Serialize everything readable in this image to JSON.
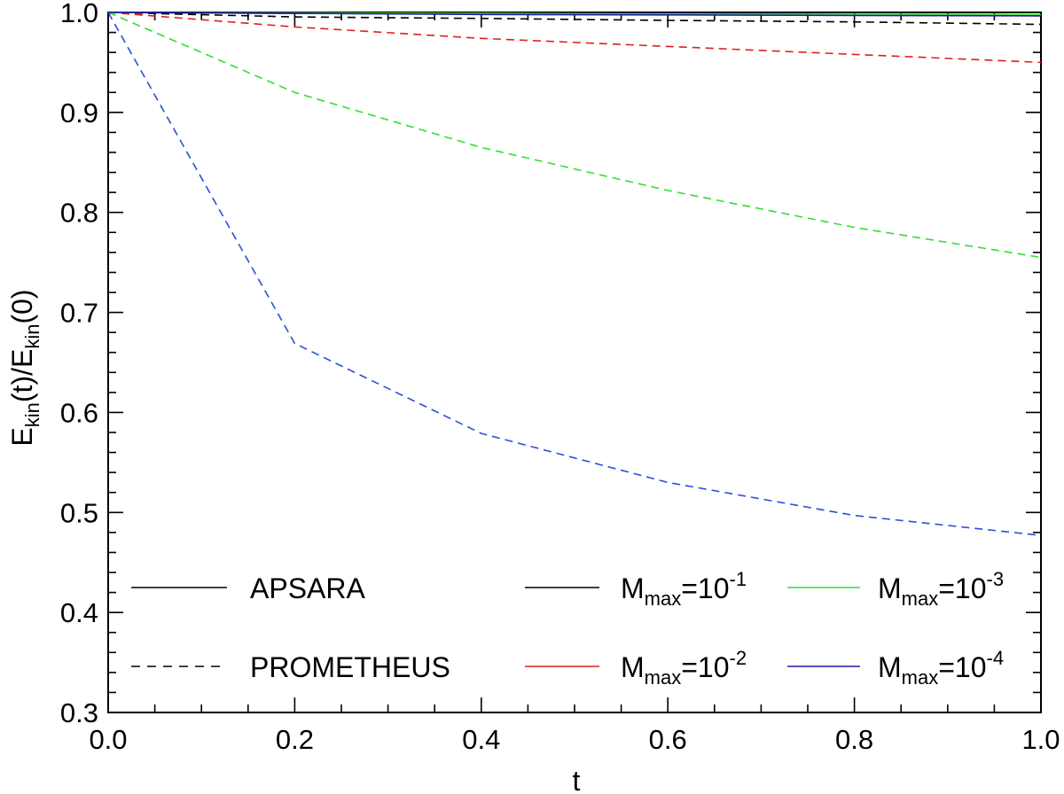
{
  "chart_data": {
    "type": "line",
    "xlabel": "t",
    "ylabel": {
      "base": "E",
      "sub1": "kin",
      "mid": "(t)/E",
      "sub2": "kin",
      "tail": "(0)"
    },
    "xlim": [
      0.0,
      1.0
    ],
    "ylim": [
      0.3,
      1.0
    ],
    "xticks": [
      "0.0",
      "0.2",
      "0.4",
      "0.6",
      "0.8",
      "1.0"
    ],
    "yticks": [
      "0.3",
      "0.4",
      "0.5",
      "0.6",
      "0.7",
      "0.8",
      "0.9",
      "1.0"
    ],
    "x": [
      0.0,
      0.2,
      0.4,
      0.6,
      0.8,
      1.0
    ],
    "series": [
      {
        "name": "APSARA M_max=10^-1",
        "code": "apsara",
        "color": "#000000",
        "dash": false,
        "values": [
          1.0,
          0.999,
          0.9985,
          0.998,
          0.9975,
          0.997
        ]
      },
      {
        "name": "APSARA M_max=10^-2",
        "code": "apsara",
        "color": "#e0201c",
        "dash": false,
        "values": [
          1.0,
          0.9995,
          0.999,
          0.9985,
          0.998,
          0.9975
        ]
      },
      {
        "name": "APSARA M_max=10^-3",
        "code": "apsara",
        "color": "#30e030",
        "dash": false,
        "values": [
          1.0,
          0.9995,
          0.999,
          0.9985,
          0.998,
          0.9975
        ]
      },
      {
        "name": "APSARA M_max=10^-4",
        "code": "apsara",
        "color": "#1c1ca8",
        "dash": false,
        "values": [
          1.0,
          0.999,
          0.998,
          0.9975,
          0.997,
          0.9965
        ]
      },
      {
        "name": "PROMETHEUS M_max=10^-1",
        "code": "prometheus",
        "color": "#000000",
        "dash": true,
        "values": [
          1.0,
          0.9955,
          0.994,
          0.992,
          0.9905,
          0.988
        ]
      },
      {
        "name": "PROMETHEUS M_max=10^-2",
        "code": "prometheus",
        "color": "#e0201c",
        "dash": true,
        "values": [
          1.0,
          0.9855,
          0.974,
          0.966,
          0.958,
          0.95
        ]
      },
      {
        "name": "PROMETHEUS M_max=10^-3",
        "code": "prometheus",
        "color": "#30e030",
        "dash": true,
        "values": [
          1.0,
          0.92,
          0.865,
          0.822,
          0.785,
          0.755
        ]
      },
      {
        "name": "PROMETHEUS M_max=10^-4",
        "code": "prometheus",
        "color": "#2a4fd6",
        "dash": true,
        "values": [
          1.0,
          0.669,
          0.579,
          0.53,
          0.497,
          0.477
        ]
      }
    ],
    "legend": {
      "codes": [
        {
          "label": "APSARA",
          "dash": false
        },
        {
          "label": "PROMETHEUS",
          "dash": true
        }
      ],
      "mach": [
        {
          "base": "M",
          "sub": "max",
          "eq": "=10",
          "sup": "-1",
          "color": "#000000"
        },
        {
          "base": "M",
          "sub": "max",
          "eq": "=10",
          "sup": "-2",
          "color": "#e0201c"
        },
        {
          "base": "M",
          "sub": "max",
          "eq": "=10",
          "sup": "-3",
          "color": "#30e030"
        },
        {
          "base": "M",
          "sub": "max",
          "eq": "=10",
          "sup": "-4",
          "color": "#1c1ca8"
        }
      ]
    }
  }
}
